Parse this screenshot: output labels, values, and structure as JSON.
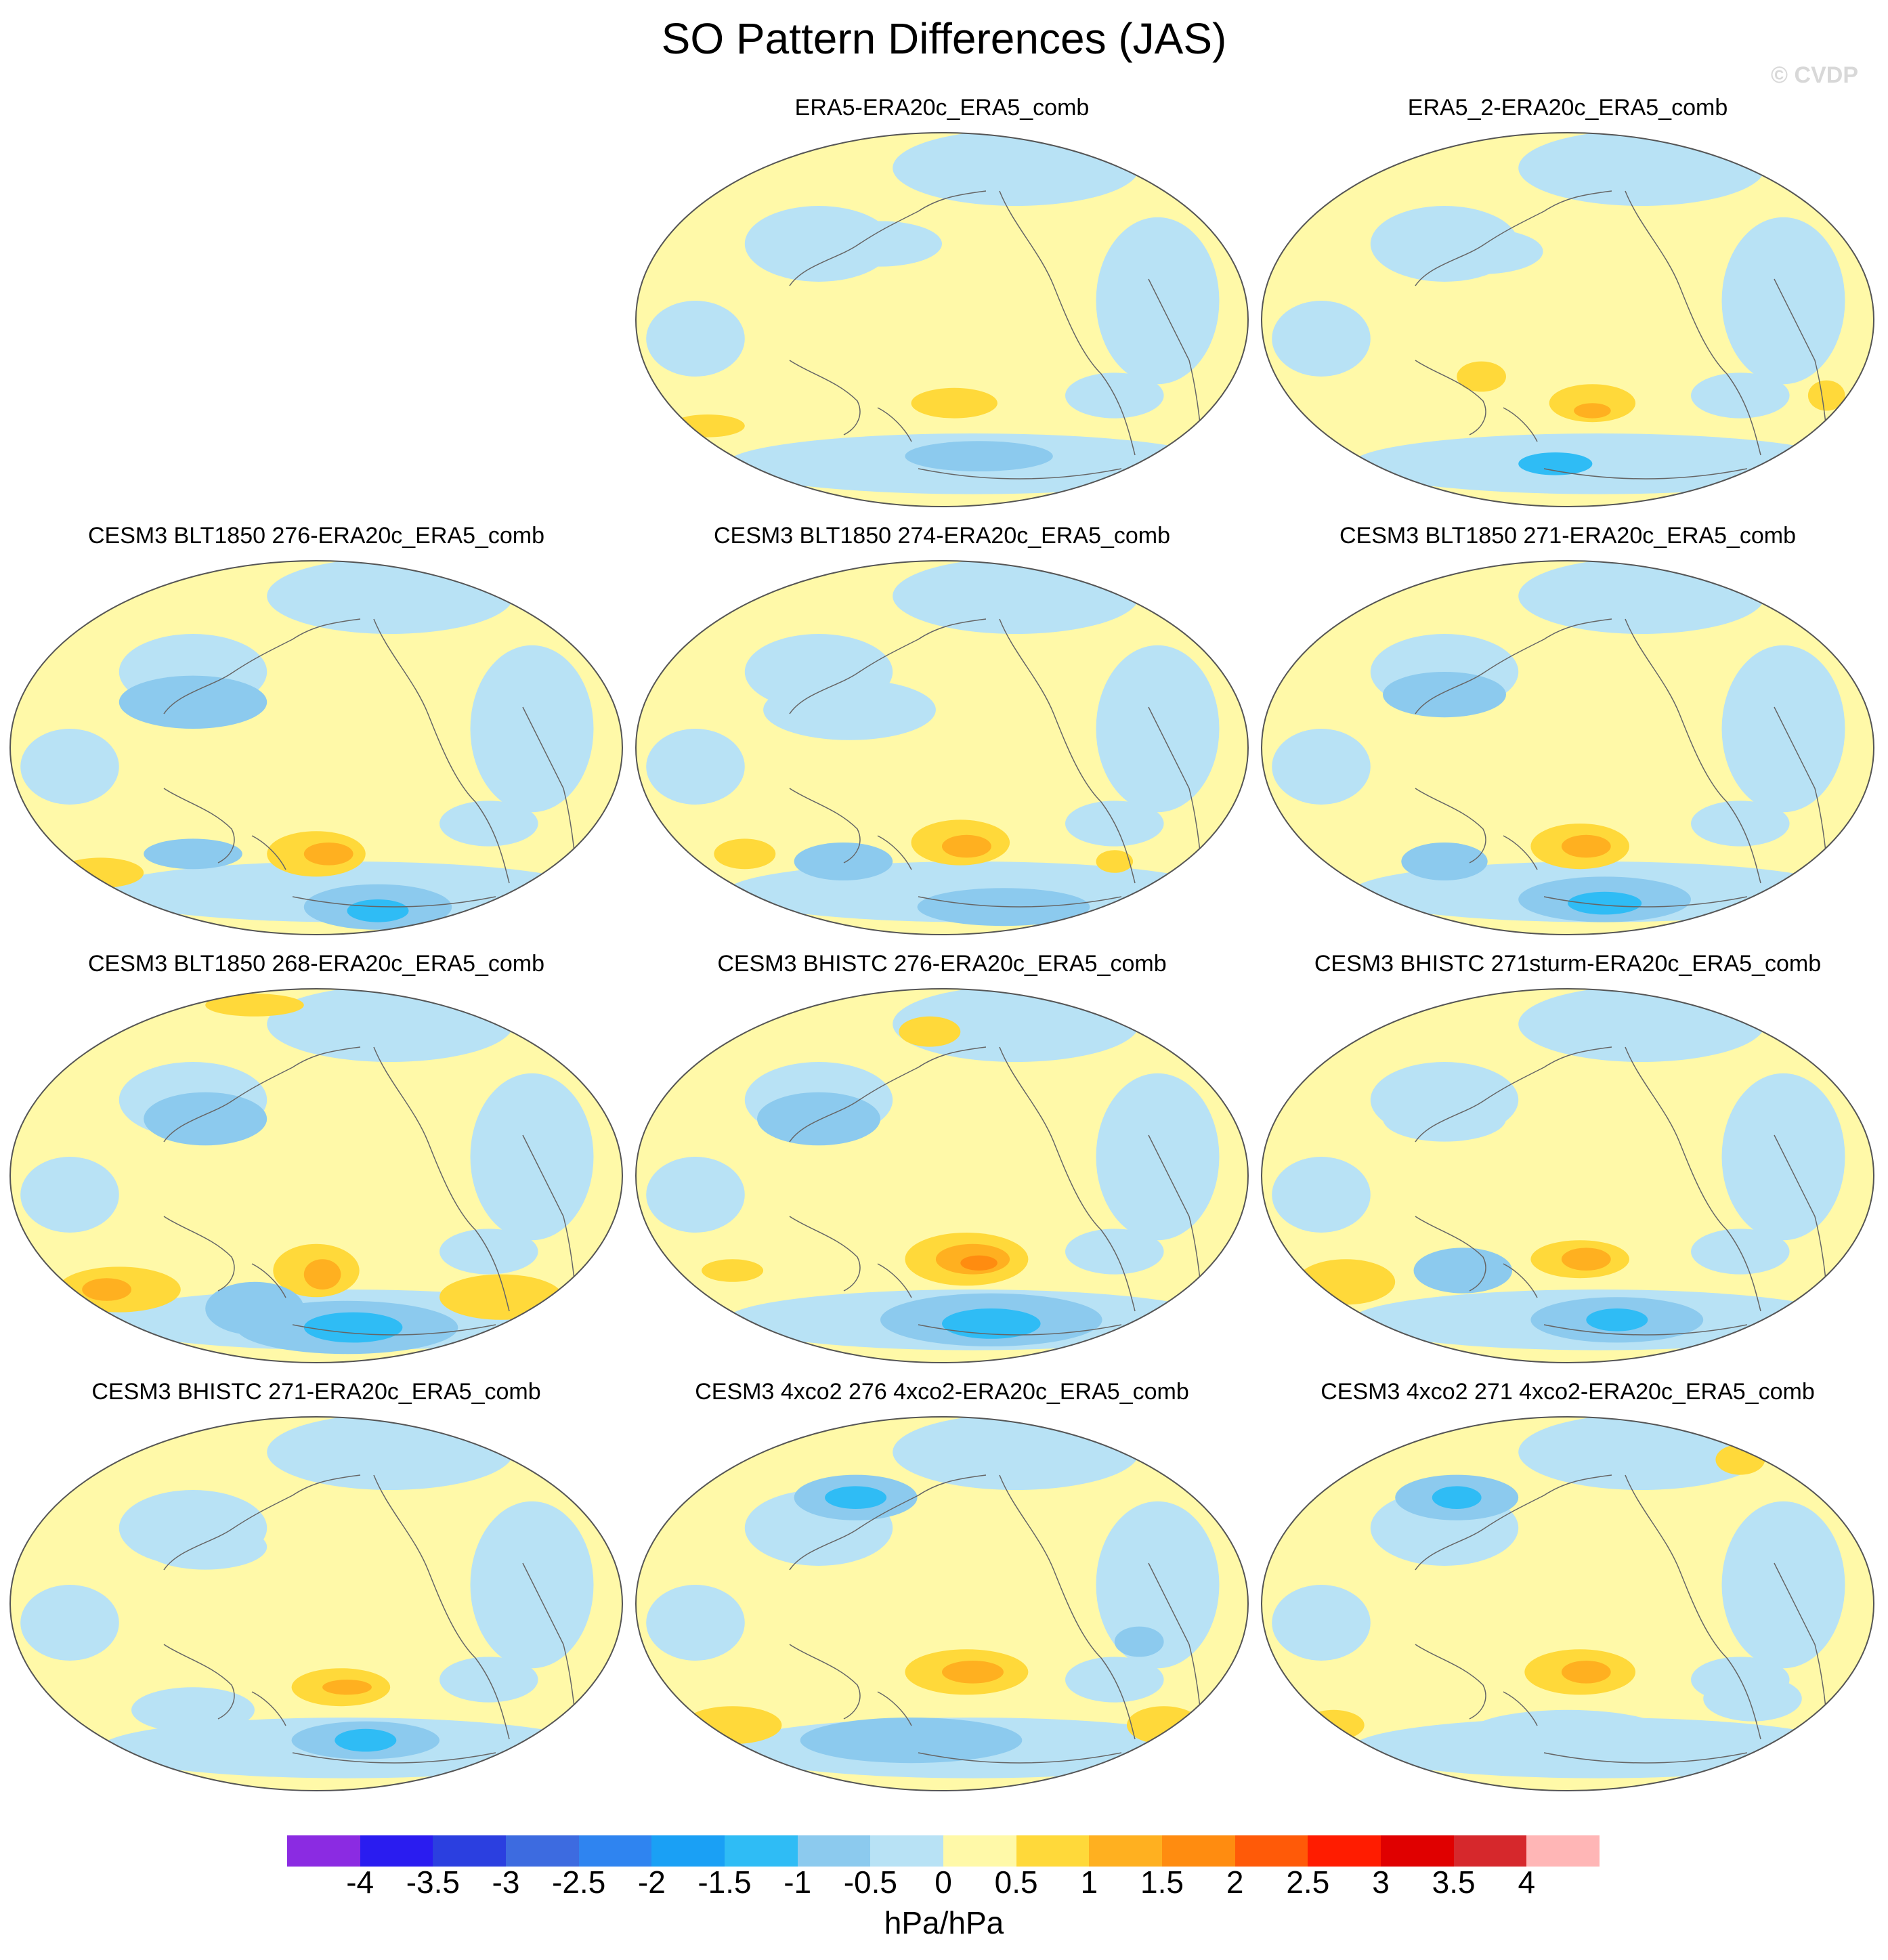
{
  "title": "SO Pattern Differences (JAS)",
  "watermark": "© CVDP",
  "panels": [
    {
      "label": "ERA5-ERA20c_ERA5_comb",
      "pos": "r0c1",
      "pattern": "obs1"
    },
    {
      "label": "ERA5_2-ERA20c_ERA5_comb",
      "pos": "r0c2",
      "pattern": "obs2"
    },
    {
      "label": "CESM3 BLT1850 276-ERA20c_ERA5_comb",
      "pos": "r1c0",
      "pattern": "m1"
    },
    {
      "label": "CESM3 BLT1850 274-ERA20c_ERA5_comb",
      "pos": "r1c1",
      "pattern": "m2"
    },
    {
      "label": "CESM3 BLT1850 271-ERA20c_ERA5_comb",
      "pos": "r1c2",
      "pattern": "m3"
    },
    {
      "label": "CESM3 BLT1850 268-ERA20c_ERA5_comb",
      "pos": "r2c0",
      "pattern": "m4"
    },
    {
      "label": "CESM3 BHISTC 276-ERA20c_ERA5_comb",
      "pos": "r2c1",
      "pattern": "m5"
    },
    {
      "label": "CESM3 BHISTC 271sturm-ERA20c_ERA5_comb",
      "pos": "r2c2",
      "pattern": "m6"
    },
    {
      "label": "CESM3 BHISTC 271-ERA20c_ERA5_comb",
      "pos": "r3c0",
      "pattern": "m7"
    },
    {
      "label": "CESM3 4xco2 276 4xco2-ERA20c_ERA5_comb",
      "pos": "r3c1",
      "pattern": "m8"
    },
    {
      "label": "CESM3 4xco2 271 4xco2-ERA20c_ERA5_comb",
      "pos": "r3c2",
      "pattern": "m9"
    }
  ],
  "colorbar": {
    "colors": [
      "#8b2be2",
      "#2a1cf0",
      "#2b3fe0",
      "#3d6be0",
      "#2f84f0",
      "#1aa0f5",
      "#2fbcf5",
      "#8ccaee",
      "#b8e2f5",
      "#fff9a8",
      "#ffd93a",
      "#ffb020",
      "#ff8c10",
      "#ff5a08",
      "#ff1c00",
      "#e00000",
      "#d6282c",
      "#ffb6b6"
    ],
    "ticks": [
      "-4",
      "-3.5",
      "-3",
      "-2.5",
      "-2",
      "-1.5",
      "-1",
      "-0.5",
      "0",
      "0.5",
      "1",
      "1.5",
      "2",
      "2.5",
      "3",
      "3.5",
      "4"
    ],
    "units": "hPa/hPa"
  },
  "palette": {
    "lightblue": "#b8e2f5",
    "midblue": "#8ccaee",
    "blue": "#2fbcf5",
    "deepblue": "#1aa0f5",
    "yellow": "#fff9a8",
    "gold": "#ffd93a",
    "orange": "#ffb020",
    "darkorange": "#ff8c10"
  }
}
